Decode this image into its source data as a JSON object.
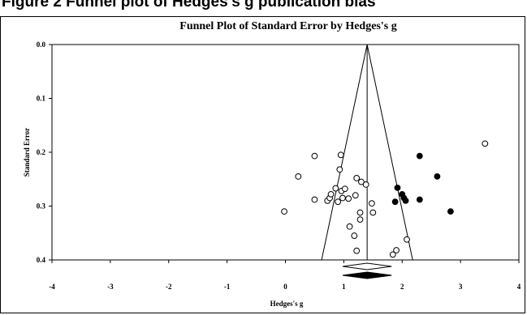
{
  "header": {
    "caption": "Figure 2 Funnel plot of Hedges's g publication bias"
  },
  "chart_data": {
    "type": "scatter",
    "title": "Funnel Plot of Standard Error by Hedges's g",
    "xlabel": "Hedges's g",
    "ylabel": "Standard Error",
    "xlim": [
      -4,
      4
    ],
    "ylim": [
      0.0,
      0.4
    ],
    "y_inverted": true,
    "x_ticks": [
      "-4",
      "-3",
      "-2",
      "-1",
      "0",
      "1",
      "2",
      "3",
      "4"
    ],
    "y_ticks": [
      "0.0",
      "0.1",
      "0.2",
      "0.3",
      "0.4"
    ],
    "grid": false,
    "legend": "none",
    "funnel": {
      "center": 1.4,
      "apex_se": 0.0,
      "base_se": 0.4,
      "base_left": 0.62,
      "base_right": 2.18
    },
    "series": [
      {
        "marker": "open-circle",
        "points": [
          [
            -0.02,
            0.31
          ],
          [
            0.22,
            0.245
          ],
          [
            0.5,
            0.207
          ],
          [
            0.5,
            0.288
          ],
          [
            0.72,
            0.29
          ],
          [
            0.76,
            0.285
          ],
          [
            0.78,
            0.278
          ],
          [
            0.86,
            0.267
          ],
          [
            0.9,
            0.292
          ],
          [
            0.93,
            0.232
          ],
          [
            0.95,
            0.205
          ],
          [
            0.96,
            0.272
          ],
          [
            0.98,
            0.285
          ],
          [
            1.02,
            0.268
          ],
          [
            1.08,
            0.286
          ],
          [
            1.1,
            0.338
          ],
          [
            1.18,
            0.355
          ],
          [
            1.2,
            0.28
          ],
          [
            1.22,
            0.248
          ],
          [
            1.22,
            0.383
          ],
          [
            1.28,
            0.325
          ],
          [
            1.28,
            0.312
          ],
          [
            1.3,
            0.255
          ],
          [
            1.38,
            0.26
          ],
          [
            1.48,
            0.295
          ],
          [
            1.5,
            0.312
          ],
          [
            1.84,
            0.39
          ],
          [
            1.9,
            0.382
          ],
          [
            2.08,
            0.362
          ],
          [
            3.42,
            0.184
          ]
        ]
      },
      {
        "marker": "filled-circle",
        "points": [
          [
            1.88,
            0.292
          ],
          [
            1.92,
            0.266
          ],
          [
            2.0,
            0.278
          ],
          [
            2.03,
            0.285
          ],
          [
            2.06,
            0.29
          ],
          [
            2.3,
            0.207
          ],
          [
            2.3,
            0.288
          ],
          [
            2.6,
            0.245
          ],
          [
            2.83,
            0.31
          ]
        ]
      }
    ],
    "summary_diamonds": [
      {
        "marker": "open-diamond",
        "center": 1.4,
        "lower": 0.98,
        "upper": 1.82
      },
      {
        "marker": "filled-diamond",
        "center": 1.4,
        "lower": 0.98,
        "upper": 1.82
      }
    ]
  }
}
